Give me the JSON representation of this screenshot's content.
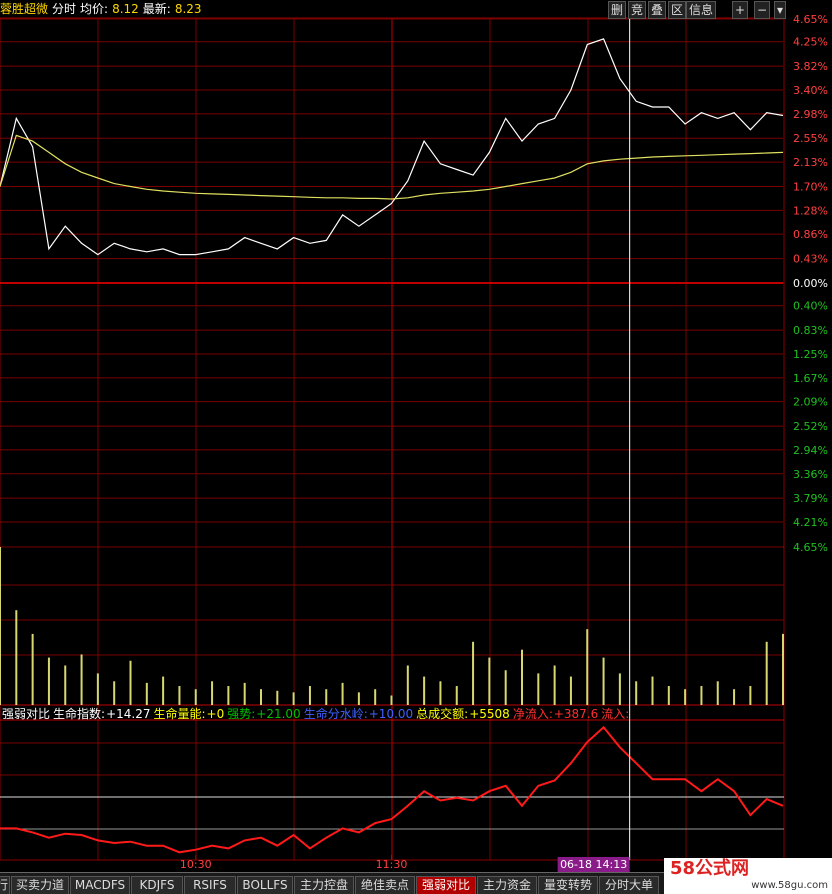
{
  "header": {
    "name": "蓉胜超微",
    "mode": "分时",
    "avg_label": "均价:",
    "avg": 8.12,
    "last_label": "最新:",
    "last": 8.23
  },
  "toolbar": [
    "删",
    "竞",
    "叠",
    "区",
    "信息",
    "+",
    "−",
    "▾"
  ],
  "indicator": {
    "name": "强弱对比",
    "items": [
      {
        "label": "生命指数:",
        "value": "+14.27",
        "color": "#ffffff"
      },
      {
        "label": "生命量能:",
        "value": "+0",
        "color": "#ffff00"
      },
      {
        "label": "强势:",
        "value": "+21.00",
        "color": "#00c000"
      },
      {
        "label": "生命分水岭:",
        "value": "+10.00",
        "color": "#4060ff"
      },
      {
        "label": "总成交额:",
        "value": "+5508",
        "color": "#ffff00"
      },
      {
        "label": "净流入:",
        "value": "+387.6",
        "color": "#ff3030"
      },
      {
        "label": "流入:",
        "value": "",
        "color": "#ff3030"
      }
    ]
  },
  "tabs": [
    "行",
    "买卖力道",
    "MACDFS",
    "KDJFS",
    "RSIFS",
    "BOLLFS",
    "主力控盘",
    "绝佳卖点",
    "强弱对比",
    "主力资金",
    "量变转势",
    "分时大单"
  ],
  "active_tab": 8,
  "watermark": {
    "title": "58公式网",
    "url": "www.58gu.com"
  },
  "chart_data": [
    {
      "type": "line",
      "xlim": [
        0,
        240
      ],
      "ylim": [
        -4.65,
        4.65
      ],
      "grid": true,
      "yticks": [
        {
          "value": 4.65,
          "label": "4.65%"
        },
        {
          "value": 4.25,
          "label": "4.25%"
        },
        {
          "value": 3.82,
          "label": "3.82%"
        },
        {
          "value": 3.4,
          "label": "3.40%"
        },
        {
          "value": 2.98,
          "label": "2.98%"
        },
        {
          "value": 2.55,
          "label": "2.55%"
        },
        {
          "value": 2.13,
          "label": "2.13%"
        },
        {
          "value": 1.7,
          "label": "1.70%"
        },
        {
          "value": 1.28,
          "label": "1.28%"
        },
        {
          "value": 0.86,
          "label": "0.86%"
        },
        {
          "value": 0.43,
          "label": "0.43%"
        },
        {
          "value": 0,
          "label": "0.00%"
        },
        {
          "value": -0.4,
          "label": "0.40%"
        },
        {
          "value": -0.83,
          "label": "0.83%"
        },
        {
          "value": -1.25,
          "label": "1.25%"
        },
        {
          "value": -1.67,
          "label": "1.67%"
        },
        {
          "value": -2.09,
          "label": "2.09%"
        },
        {
          "value": -2.52,
          "label": "2.52%"
        },
        {
          "value": -2.94,
          "label": "2.94%"
        },
        {
          "value": -3.36,
          "label": "3.36%"
        },
        {
          "value": -3.79,
          "label": "3.79%"
        },
        {
          "value": -4.21,
          "label": "4.21%"
        },
        {
          "value": -4.65,
          "label": "4.65%"
        }
      ],
      "x": [
        0,
        5,
        10,
        15,
        20,
        25,
        30,
        35,
        40,
        45,
        50,
        55,
        60,
        65,
        70,
        75,
        80,
        85,
        90,
        95,
        100,
        105,
        110,
        115,
        120,
        125,
        130,
        135,
        140,
        145,
        150,
        155,
        160,
        165,
        170,
        175,
        180,
        185,
        190,
        195,
        200,
        205,
        210,
        215,
        220,
        225,
        230,
        235,
        240
      ],
      "series": [
        {
          "color": "#ffffff",
          "values": [
            1.7,
            2.9,
            2.4,
            0.6,
            1.0,
            0.7,
            0.5,
            0.7,
            0.6,
            0.55,
            0.6,
            0.5,
            0.5,
            0.55,
            0.6,
            0.8,
            0.7,
            0.6,
            0.8,
            0.7,
            0.75,
            1.2,
            1.0,
            1.2,
            1.4,
            1.8,
            2.5,
            2.1,
            2.0,
            1.9,
            2.3,
            2.9,
            2.5,
            2.8,
            2.9,
            3.4,
            4.2,
            4.3,
            3.6,
            3.2,
            3.1,
            3.1,
            2.8,
            3.0,
            2.9,
            3.0,
            2.7,
            3.0,
            2.95
          ]
        },
        {
          "color": "#e0e060",
          "values": [
            1.7,
            2.6,
            2.5,
            2.3,
            2.1,
            1.95,
            1.85,
            1.75,
            1.7,
            1.65,
            1.62,
            1.6,
            1.58,
            1.57,
            1.56,
            1.55,
            1.54,
            1.53,
            1.52,
            1.51,
            1.5,
            1.5,
            1.49,
            1.49,
            1.48,
            1.5,
            1.55,
            1.58,
            1.6,
            1.62,
            1.65,
            1.7,
            1.75,
            1.8,
            1.85,
            1.95,
            2.1,
            2.15,
            2.18,
            2.2,
            2.22,
            2.23,
            2.24,
            2.25,
            2.26,
            2.27,
            2.28,
            2.29,
            2.3
          ]
        }
      ]
    },
    {
      "type": "bar",
      "xlim": [
        0,
        240
      ],
      "ylim": [
        0,
        100
      ],
      "color": "#d8d870",
      "x": [
        0,
        5,
        10,
        15,
        20,
        25,
        30,
        35,
        40,
        45,
        50,
        55,
        60,
        65,
        70,
        75,
        80,
        85,
        90,
        95,
        100,
        105,
        110,
        115,
        120,
        125,
        130,
        135,
        140,
        145,
        150,
        155,
        160,
        165,
        170,
        175,
        180,
        185,
        190,
        195,
        200,
        205,
        210,
        215,
        220,
        225,
        230,
        235,
        240
      ],
      "values": [
        100,
        60,
        45,
        30,
        25,
        32,
        20,
        15,
        28,
        14,
        18,
        12,
        10,
        15,
        12,
        14,
        10,
        9,
        8,
        12,
        10,
        14,
        8,
        10,
        6,
        25,
        18,
        15,
        12,
        40,
        30,
        22,
        35,
        20,
        25,
        18,
        48,
        30,
        20,
        15,
        18,
        12,
        10,
        12,
        15,
        10,
        12,
        40,
        45
      ]
    },
    {
      "type": "line",
      "xlim": [
        0,
        240
      ],
      "ylim": [
        0,
        100
      ],
      "xticks": [
        {
          "value": 60,
          "label": "10:30"
        },
        {
          "value": 120,
          "label": "11:30"
        }
      ],
      "cursor": {
        "value": 193,
        "label": "06-18 14:13"
      },
      "x": [
        0,
        5,
        10,
        15,
        20,
        25,
        30,
        35,
        40,
        45,
        50,
        55,
        60,
        65,
        70,
        75,
        80,
        85,
        90,
        95,
        100,
        105,
        110,
        115,
        120,
        125,
        130,
        135,
        140,
        145,
        150,
        155,
        160,
        165,
        170,
        175,
        180,
        185,
        190,
        195,
        200,
        205,
        210,
        215,
        220,
        225,
        230,
        235,
        240
      ],
      "series": [
        {
          "color": "#ff1a1a",
          "values": [
            20,
            20,
            17,
            13,
            16,
            15,
            11,
            9,
            10,
            7,
            7,
            2,
            4,
            7,
            5,
            11,
            13,
            7,
            15,
            5,
            13,
            20,
            17,
            24,
            27,
            37,
            48,
            41,
            43,
            41,
            48,
            52,
            37,
            52,
            56,
            69,
            85,
            96,
            81,
            69,
            57,
            57,
            57,
            48,
            57,
            48,
            30,
            42,
            37
          ]
        }
      ]
    }
  ]
}
